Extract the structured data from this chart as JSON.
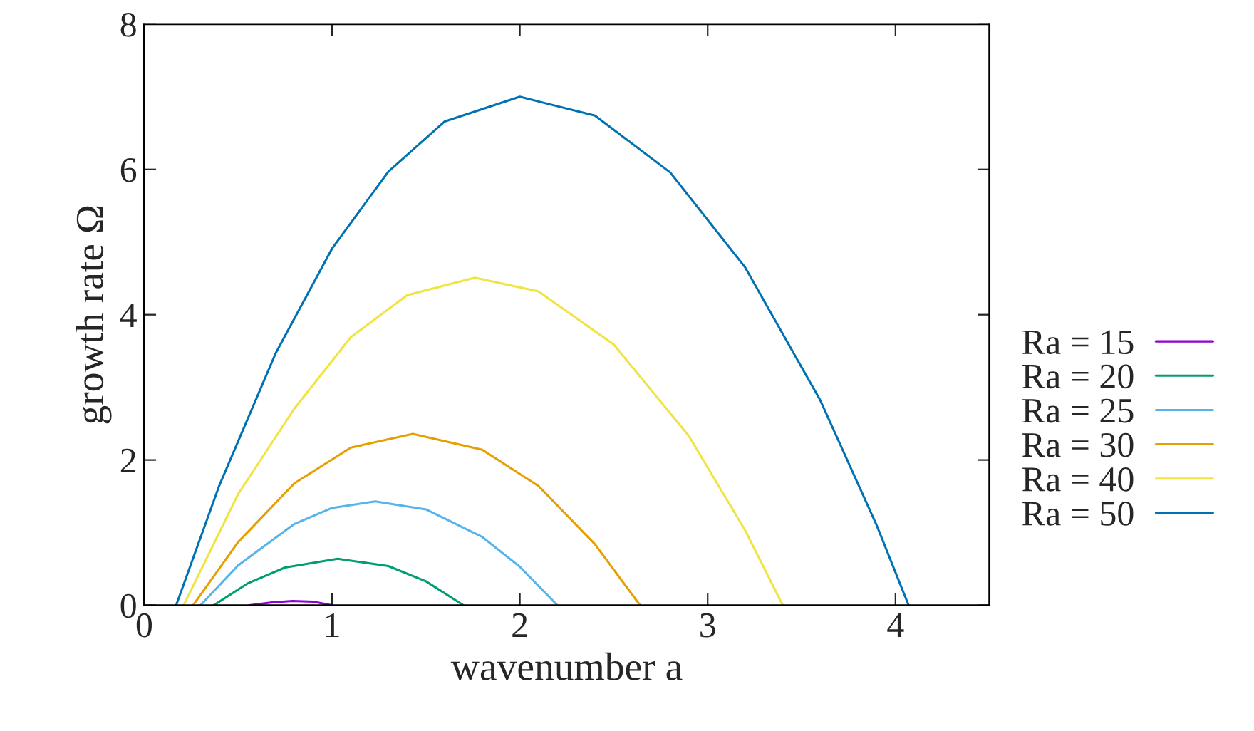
{
  "chart_data": {
    "type": "line",
    "xlabel": "wavenumber a",
    "ylabel": "growth rate Ω",
    "xlim": [
      0,
      4.5
    ],
    "xticks": [
      0,
      1,
      2,
      3,
      4
    ],
    "ylim": [
      0,
      8
    ],
    "yticks": [
      0,
      2,
      4,
      6,
      8
    ],
    "grid": false,
    "legend": "right",
    "marker": "none",
    "line_style": "solid",
    "series": [
      {
        "name": "Ra = 15",
        "color": "#9400d3",
        "x": [
          0.56,
          0.68,
          0.79,
          0.9,
          1.0
        ],
        "values": [
          0,
          0.04,
          0.06,
          0.05,
          0
        ]
      },
      {
        "name": "Ra = 20",
        "color": "#009e73",
        "x": [
          0.37,
          0.55,
          0.75,
          1.03,
          1.3,
          1.5,
          1.7
        ],
        "values": [
          0,
          0.3,
          0.52,
          0.64,
          0.54,
          0.33,
          0
        ]
      },
      {
        "name": "Ra = 25",
        "color": "#56b4e9",
        "x": [
          0.3,
          0.5,
          0.8,
          1.0,
          1.23,
          1.5,
          1.8,
          2.0,
          2.2
        ],
        "values": [
          0,
          0.55,
          1.12,
          1.34,
          1.43,
          1.32,
          0.94,
          0.53,
          0
        ]
      },
      {
        "name": "Ra = 30",
        "color": "#e69f00",
        "x": [
          0.26,
          0.5,
          0.8,
          1.1,
          1.43,
          1.8,
          2.1,
          2.4,
          2.64
        ],
        "values": [
          0,
          0.87,
          1.68,
          2.17,
          2.36,
          2.14,
          1.64,
          0.84,
          0
        ]
      },
      {
        "name": "Ra = 40",
        "color": "#f0e442",
        "x": [
          0.21,
          0.5,
          0.8,
          1.1,
          1.4,
          1.76,
          2.1,
          2.5,
          2.9,
          3.2,
          3.4
        ],
        "values": [
          0,
          1.53,
          2.71,
          3.69,
          4.27,
          4.51,
          4.32,
          3.59,
          2.33,
          1.03,
          0
        ]
      },
      {
        "name": "Ra = 50",
        "color": "#0072b2",
        "x": [
          0.17,
          0.4,
          0.7,
          1.0,
          1.3,
          1.6,
          2.0,
          2.4,
          2.8,
          3.2,
          3.6,
          3.9,
          4.07
        ],
        "values": [
          0,
          1.65,
          3.47,
          4.91,
          5.97,
          6.66,
          7.0,
          6.74,
          5.96,
          4.65,
          2.82,
          1.1,
          0
        ]
      }
    ]
  }
}
